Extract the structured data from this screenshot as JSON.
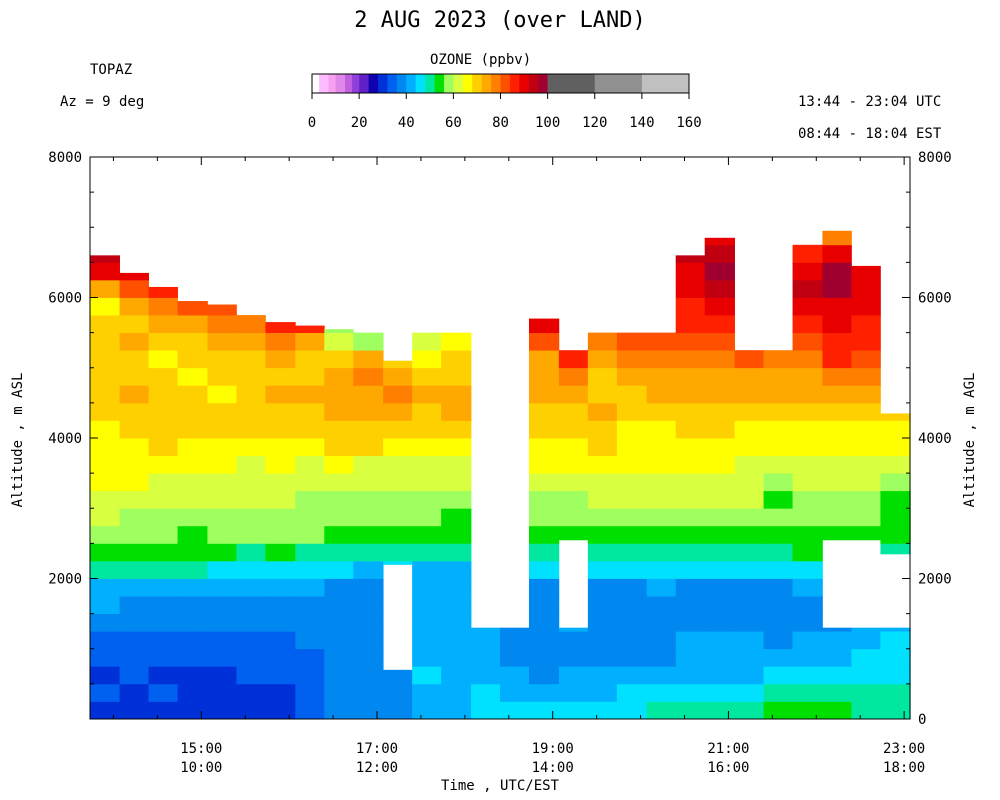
{
  "header": {
    "title": "2 AUG 2023 (over LAND)",
    "station": "TOPAZ",
    "azimuth": "Az =   9 deg",
    "utc_range": "13:44 - 23:04 UTC",
    "est_range": "08:44 - 18:04 EST"
  },
  "colorbar": {
    "title": "OZONE (ppbv)",
    "tick_labels": [
      "0",
      "20",
      "40",
      "60",
      "80",
      "100",
      "120",
      "140",
      "160"
    ],
    "ticks": [
      0,
      20,
      40,
      60,
      80,
      100,
      120,
      140,
      160
    ],
    "range": [
      0,
      160
    ],
    "bins": [
      {
        "lo": 0,
        "hi": 3,
        "color": "#ffffff"
      },
      {
        "lo": 3,
        "hi": 7,
        "color": "#ffbbff"
      },
      {
        "lo": 7,
        "hi": 10,
        "color": "#f8a0f0"
      },
      {
        "lo": 10,
        "hi": 14,
        "color": "#e088e8"
      },
      {
        "lo": 14,
        "hi": 17,
        "color": "#c060e0"
      },
      {
        "lo": 17,
        "hi": 20,
        "color": "#9040d8"
      },
      {
        "lo": 20,
        "hi": 24,
        "color": "#6020c8"
      },
      {
        "lo": 24,
        "hi": 28,
        "color": "#1000b0"
      },
      {
        "lo": 28,
        "hi": 32,
        "color": "#0030d8"
      },
      {
        "lo": 32,
        "hi": 36,
        "color": "#0060f0"
      },
      {
        "lo": 36,
        "hi": 40,
        "color": "#0088f0"
      },
      {
        "lo": 40,
        "hi": 44,
        "color": "#00b0ff"
      },
      {
        "lo": 44,
        "hi": 48,
        "color": "#00e0ff"
      },
      {
        "lo": 48,
        "hi": 52,
        "color": "#00e8a0"
      },
      {
        "lo": 52,
        "hi": 56,
        "color": "#00e000"
      },
      {
        "lo": 56,
        "hi": 60,
        "color": "#a0ff60"
      },
      {
        "lo": 60,
        "hi": 64,
        "color": "#d8ff40"
      },
      {
        "lo": 64,
        "hi": 68,
        "color": "#ffff00"
      },
      {
        "lo": 68,
        "hi": 72,
        "color": "#ffd000"
      },
      {
        "lo": 72,
        "hi": 76,
        "color": "#ffa800"
      },
      {
        "lo": 76,
        "hi": 80,
        "color": "#ff8000"
      },
      {
        "lo": 80,
        "hi": 84,
        "color": "#ff5000"
      },
      {
        "lo": 84,
        "hi": 88,
        "color": "#ff2000"
      },
      {
        "lo": 88,
        "hi": 92,
        "color": "#e80000"
      },
      {
        "lo": 92,
        "hi": 96,
        "color": "#c00010"
      },
      {
        "lo": 96,
        "hi": 100,
        "color": "#a00030"
      },
      {
        "lo": 100,
        "hi": 120,
        "color": "#606060"
      },
      {
        "lo": 120,
        "hi": 140,
        "color": "#909090"
      },
      {
        "lo": 140,
        "hi": 160,
        "color": "#c0c0c0"
      }
    ]
  },
  "chart_data": {
    "type": "heatmap",
    "title": "2 AUG 2023 (over LAND)",
    "xlabel": "Time , UTC/EST",
    "ylabel_left": "Altitude , m ASL",
    "ylabel_right": "Altitude , m AGL",
    "x_unit": "hours UTC",
    "xlim": [
      13.7333,
      23.0667
    ],
    "ylim_asl": [
      0,
      8000
    ],
    "surface_altitude_asl": 0,
    "x_ticks": [
      {
        "hour": 15,
        "utc": "15:00",
        "est": "10:00"
      },
      {
        "hour": 17,
        "utc": "17:00",
        "est": "12:00"
      },
      {
        "hour": 19,
        "utc": "19:00",
        "est": "14:00"
      },
      {
        "hour": 21,
        "utc": "21:00",
        "est": "16:00"
      },
      {
        "hour": 23,
        "utc": "23:00",
        "est": "18:00"
      }
    ],
    "y_left_ticks": [
      2000,
      4000,
      6000,
      8000
    ],
    "y_left_tick_labels": [
      "2000",
      "4000",
      "6000",
      "8000"
    ],
    "y_right_ticks": [
      0,
      2000,
      4000,
      6000,
      8000
    ],
    "y_right_tick_labels": [
      "0",
      "2000",
      "4000",
      "6000",
      "8000"
    ],
    "altitude_bins_m": [
      0,
      250,
      500,
      750,
      1000,
      1250,
      1500,
      1750,
      2000,
      2250,
      2500,
      2750,
      3000,
      3250,
      3500,
      3750,
      4000,
      4250,
      4500,
      4750,
      5000,
      5250,
      5500,
      5750,
      6000,
      6250,
      6500,
      6750,
      7000
    ],
    "profiles": [
      {
        "t0": 13.73,
        "t1": 14.07,
        "top": 6600,
        "gap": null,
        "o3": [
          30,
          34,
          30,
          32,
          33,
          36,
          40,
          42,
          50,
          54,
          58,
          60,
          62,
          65,
          66,
          66,
          66,
          68,
          70,
          70,
          68,
          70,
          68,
          66,
          75,
          88,
          92
        ]
      },
      {
        "t0": 14.07,
        "t1": 14.4,
        "top": 6350,
        "gap": null,
        "o3": [
          28,
          30,
          32,
          34,
          34,
          36,
          38,
          42,
          50,
          52,
          56,
          58,
          60,
          64,
          66,
          66,
          68,
          70,
          72,
          70,
          68,
          72,
          70,
          72,
          80,
          88,
          98
        ]
      },
      {
        "t0": 14.4,
        "t1": 14.73,
        "top": 6150,
        "gap": null,
        "o3": [
          30,
          32,
          30,
          32,
          34,
          36,
          38,
          42,
          48,
          52,
          56,
          58,
          62,
          62,
          64,
          68,
          68,
          70,
          70,
          68,
          66,
          68,
          72,
          76,
          86,
          88
        ]
      },
      {
        "t0": 14.73,
        "t1": 15.07,
        "top": 5950,
        "gap": null,
        "o3": [
          28,
          30,
          30,
          32,
          34,
          36,
          38,
          40,
          48,
          52,
          54,
          58,
          60,
          62,
          64,
          66,
          68,
          68,
          70,
          66,
          68,
          70,
          72,
          80,
          94
        ]
      },
      {
        "t0": 15.07,
        "t1": 15.4,
        "top": 5900,
        "gap": null,
        "o3": [
          28,
          30,
          30,
          32,
          34,
          36,
          38,
          42,
          46,
          52,
          56,
          58,
          60,
          60,
          64,
          66,
          68,
          70,
          66,
          68,
          70,
          72,
          76,
          82
        ]
      },
      {
        "t0": 15.4,
        "t1": 15.73,
        "top": 5750,
        "gap": null,
        "o3": [
          30,
          30,
          32,
          34,
          34,
          36,
          38,
          40,
          46,
          50,
          56,
          58,
          60,
          62,
          62,
          66,
          68,
          70,
          70,
          68,
          70,
          72,
          78
        ]
      },
      {
        "t0": 15.73,
        "t1": 16.07,
        "top": 5650,
        "gap": null,
        "o3": [
          28,
          30,
          32,
          32,
          34,
          36,
          38,
          42,
          46,
          52,
          56,
          58,
          60,
          62,
          64,
          66,
          68,
          70,
          72,
          68,
          72,
          76,
          86
        ]
      },
      {
        "t0": 16.07,
        "t1": 16.4,
        "top": 5600,
        "gap": null,
        "o3": [
          32,
          32,
          34,
          34,
          36,
          36,
          38,
          40,
          44,
          50,
          56,
          58,
          56,
          60,
          62,
          66,
          68,
          70,
          72,
          70,
          70,
          74,
          84
        ]
      },
      {
        "t0": 16.4,
        "t1": 16.73,
        "top": 5550,
        "gap": null,
        "o3": [
          36,
          38,
          36,
          38,
          38,
          36,
          38,
          38,
          44,
          50,
          54,
          56,
          58,
          60,
          64,
          68,
          70,
          72,
          74,
          72,
          68,
          62,
          56
        ]
      },
      {
        "t0": 16.73,
        "t1": 17.07,
        "top": 5500,
        "gap": null,
        "o3": [
          36,
          38,
          38,
          38,
          36,
          36,
          36,
          36,
          42,
          48,
          54,
          58,
          56,
          60,
          62,
          68,
          70,
          72,
          74,
          76,
          72,
          56,
          54
        ]
      },
      {
        "t0": 17.07,
        "t1": 17.4,
        "top": 5100,
        "gap": [
          700,
          2200
        ],
        "o3": [
          38,
          38,
          38,
          36,
          36,
          36,
          36,
          36,
          44,
          48,
          54,
          58,
          56,
          60,
          62,
          66,
          70,
          72,
          76,
          74,
          70,
          66
        ]
      },
      {
        "t0": 17.4,
        "t1": 17.73,
        "top": 5500,
        "gap": null,
        "o3": [
          40,
          42,
          44,
          40,
          40,
          40,
          40,
          40,
          42,
          50,
          54,
          58,
          56,
          60,
          62,
          66,
          68,
          70,
          72,
          70,
          66,
          60,
          54
        ]
      },
      {
        "t0": 17.73,
        "t1": 18.07,
        "top": 5500,
        "gap": null,
        "o3": [
          40,
          40,
          40,
          40,
          40,
          40,
          40,
          40,
          42,
          50,
          54,
          52,
          56,
          60,
          62,
          66,
          70,
          72,
          72,
          70,
          68,
          66,
          62
        ]
      },
      {
        "t0": 18.07,
        "t1": 18.4,
        "top": 1300,
        "gap": null,
        "o3": [
          44,
          44,
          42,
          40,
          40,
          40
        ]
      },
      {
        "t0": 18.4,
        "t1": 18.73,
        "top": 1300,
        "gap": null,
        "o3": [
          44,
          42,
          40,
          38,
          38,
          38
        ]
      },
      {
        "t0": 18.73,
        "t1": 19.07,
        "top": 5700,
        "gap": null,
        "o3": [
          44,
          40,
          38,
          36,
          36,
          36,
          36,
          38,
          44,
          48,
          52,
          56,
          58,
          62,
          64,
          66,
          68,
          70,
          72,
          72,
          74,
          82,
          88
        ]
      },
      {
        "t0": 19.07,
        "t1": 19.4,
        "top": 5250,
        "gap": [
          1300,
          2550
        ],
        "o3": [
          44,
          42,
          40,
          38,
          38,
          40,
          40,
          40,
          44,
          48,
          52,
          58,
          58,
          62,
          64,
          66,
          68,
          70,
          72,
          76,
          84,
          92
        ]
      },
      {
        "t0": 19.4,
        "t1": 19.73,
        "top": 5500,
        "gap": null,
        "o3": [
          44,
          42,
          40,
          38,
          38,
          38,
          38,
          38,
          44,
          50,
          52,
          56,
          60,
          62,
          66,
          68,
          70,
          72,
          70,
          68,
          72,
          78,
          84
        ]
      },
      {
        "t0": 19.73,
        "t1": 20.07,
        "top": 5500,
        "gap": null,
        "o3": [
          46,
          44,
          40,
          38,
          38,
          38,
          38,
          38,
          46,
          50,
          54,
          58,
          60,
          62,
          64,
          66,
          66,
          68,
          70,
          72,
          76,
          80,
          82
        ]
      },
      {
        "t0": 20.07,
        "t1": 20.4,
        "top": 5500,
        "gap": null,
        "o3": [
          48,
          44,
          42,
          38,
          38,
          38,
          38,
          40,
          46,
          50,
          54,
          58,
          60,
          62,
          64,
          64,
          66,
          70,
          72,
          74,
          78,
          82,
          86
        ]
      },
      {
        "t0": 20.4,
        "t1": 20.73,
        "top": 6600,
        "gap": null,
        "o3": [
          48,
          46,
          42,
          40,
          40,
          38,
          38,
          38,
          44,
          50,
          54,
          58,
          60,
          62,
          64,
          66,
          68,
          70,
          72,
          74,
          76,
          80,
          84,
          86,
          88,
          90,
          94
        ]
      },
      {
        "t0": 20.73,
        "t1": 21.07,
        "top": 6850,
        "gap": null,
        "o3": [
          48,
          46,
          42,
          40,
          40,
          38,
          38,
          38,
          44,
          50,
          54,
          58,
          60,
          60,
          64,
          66,
          68,
          70,
          72,
          74,
          76,
          80,
          84,
          88,
          92,
          96,
          92,
          90
        ]
      },
      {
        "t0": 21.07,
        "t1": 21.4,
        "top": 5250,
        "gap": null,
        "o3": [
          50,
          46,
          42,
          40,
          40,
          38,
          38,
          38,
          44,
          50,
          54,
          58,
          60,
          60,
          62,
          64,
          66,
          70,
          72,
          74,
          80,
          84
        ]
      },
      {
        "t0": 21.4,
        "t1": 21.73,
        "top": 5250,
        "gap": null,
        "o3": [
          52,
          48,
          44,
          40,
          38,
          38,
          38,
          38,
          44,
          50,
          54,
          58,
          54,
          58,
          60,
          64,
          66,
          70,
          72,
          74,
          78,
          82
        ]
      },
      {
        "t0": 21.73,
        "t1": 22.07,
        "top": 6750,
        "gap": null,
        "o3": [
          52,
          48,
          44,
          40,
          40,
          38,
          38,
          40,
          46,
          52,
          54,
          58,
          56,
          60,
          62,
          64,
          66,
          70,
          72,
          72,
          76,
          80,
          84,
          88,
          94,
          90,
          86
        ]
      },
      {
        "t0": 22.07,
        "t1": 22.4,
        "top": 6950,
        "gap": [
          1300,
          2550
        ],
        "o3": [
          52,
          50,
          44,
          42,
          40,
          38,
          40,
          40,
          46,
          52,
          54,
          56,
          56,
          60,
          62,
          64,
          66,
          70,
          72,
          76,
          84,
          86,
          88,
          90,
          96,
          96,
          88,
          76
        ]
      },
      {
        "t0": 22.4,
        "t1": 22.73,
        "top": 6450,
        "gap": [
          1300,
          2550
        ],
        "o3": [
          50,
          48,
          46,
          44,
          42,
          40,
          38,
          40,
          46,
          50,
          54,
          56,
          58,
          60,
          62,
          64,
          66,
          70,
          72,
          76,
          80,
          84,
          86,
          88,
          90,
          88
        ]
      },
      {
        "t0": 22.73,
        "t1": 23.07,
        "top": 4350,
        "gap": [
          1300,
          2350
        ],
        "o3": [
          50,
          48,
          46,
          44,
          44,
          42,
          40,
          40,
          46,
          50,
          54,
          52,
          54,
          58,
          62,
          64,
          66,
          70
        ]
      }
    ]
  }
}
